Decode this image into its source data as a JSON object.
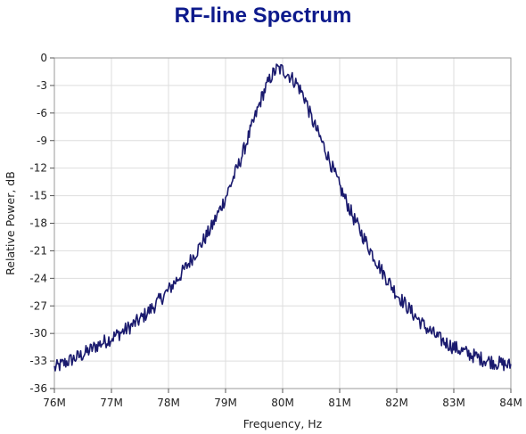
{
  "chart_data": {
    "type": "line",
    "title": "RF-line Spectrum",
    "xlabel": "Frequency, Hz",
    "ylabel": "Relative Power, dB",
    "xlim": [
      76000000,
      84000000
    ],
    "ylim": [
      -36,
      0
    ],
    "x_ticks": [
      76000000,
      77000000,
      78000000,
      79000000,
      80000000,
      81000000,
      82000000,
      83000000,
      84000000
    ],
    "x_tick_labels": [
      "76M",
      "77M",
      "78M",
      "79M",
      "80M",
      "81M",
      "82M",
      "83M",
      "84M"
    ],
    "y_ticks": [
      0,
      -3,
      -6,
      -9,
      -12,
      -15,
      -18,
      -21,
      -24,
      -27,
      -30,
      -33,
      -36
    ],
    "y_tick_labels": [
      "0",
      "-3",
      "-6",
      "-9",
      "-12",
      "-15",
      "-18",
      "-21",
      "-24",
      "-27",
      "-30",
      "-33",
      "-36"
    ],
    "grid": true,
    "legend": "none",
    "series": [
      {
        "color": "#1a1a6e",
        "x": [
          76000000,
          76250000,
          76500000,
          76750000,
          77000000,
          77250000,
          77500000,
          77750000,
          78000000,
          78250000,
          78500000,
          78750000,
          79000000,
          79250000,
          79500000,
          79650000,
          79800000,
          79900000,
          80000000,
          80100000,
          80250000,
          80400000,
          80500000,
          80750000,
          81000000,
          81250000,
          81500000,
          81750000,
          82000000,
          82250000,
          82500000,
          82750000,
          83000000,
          83250000,
          83500000,
          83750000,
          84000000
        ],
        "y": [
          -33.8,
          -33.0,
          -32.3,
          -31.3,
          -30.5,
          -29.6,
          -28.5,
          -27.0,
          -25.3,
          -23.3,
          -21.0,
          -18.5,
          -15.2,
          -11.3,
          -6.8,
          -4.0,
          -2.0,
          -1.2,
          -1.3,
          -1.8,
          -2.8,
          -4.5,
          -6.5,
          -10.0,
          -14.0,
          -17.5,
          -20.5,
          -23.3,
          -25.7,
          -27.6,
          -29.3,
          -30.6,
          -31.5,
          -32.2,
          -32.8,
          -33.2,
          -33.5
        ]
      }
    ]
  }
}
